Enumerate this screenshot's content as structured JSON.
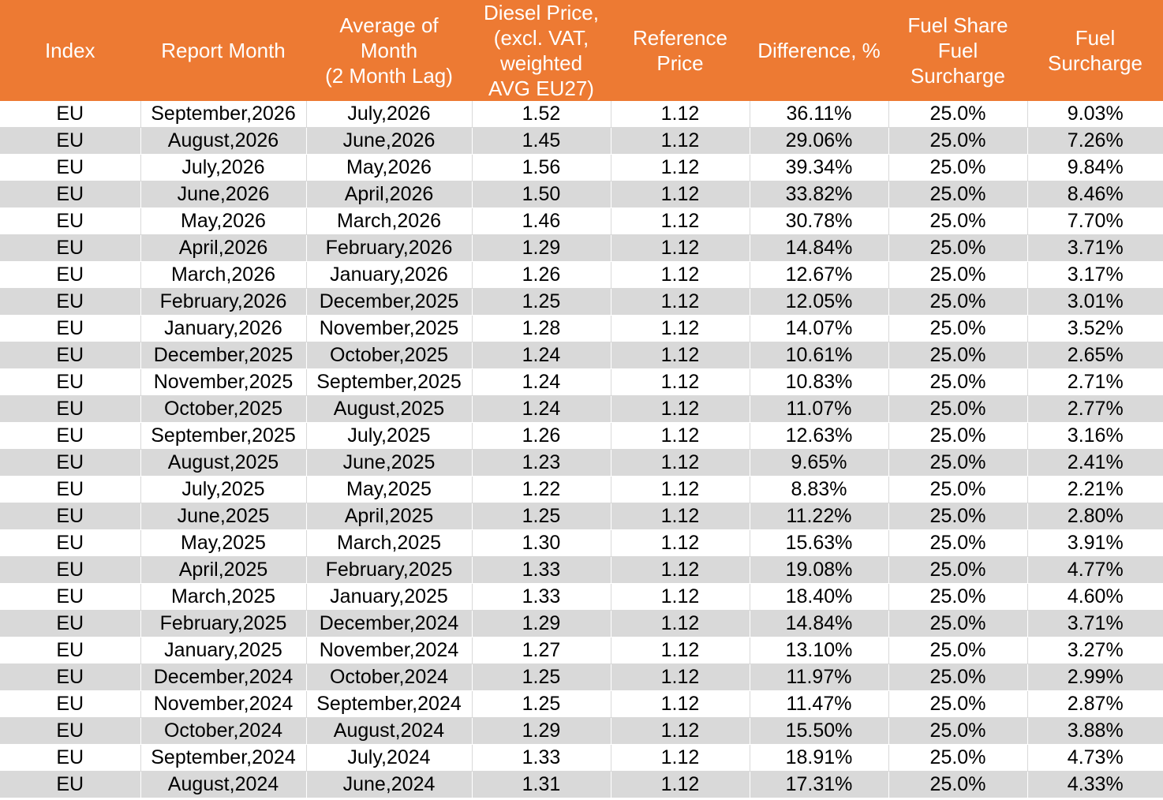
{
  "headers": [
    {
      "lines": [
        "Index"
      ]
    },
    {
      "lines": [
        "Report Month"
      ]
    },
    {
      "lines": [
        "Average of",
        "Month",
        "(2 Month Lag)"
      ]
    },
    {
      "lines": [
        "Diesel Price,",
        "(excl. VAT,",
        "weighted",
        "AVG EU27)"
      ]
    },
    {
      "lines": [
        "Reference",
        "Price"
      ]
    },
    {
      "lines": [
        "Difference, %"
      ]
    },
    {
      "lines": [
        "Fuel Share",
        "Fuel",
        "Surcharge"
      ]
    },
    {
      "lines": [
        "Fuel",
        "Surcharge"
      ]
    }
  ],
  "rows": [
    [
      "EU",
      "September,2026",
      "July,2026",
      "1.52",
      "1.12",
      "36.11%",
      "25.0%",
      "9.03%"
    ],
    [
      "EU",
      "August,2026",
      "June,2026",
      "1.45",
      "1.12",
      "29.06%",
      "25.0%",
      "7.26%"
    ],
    [
      "EU",
      "July,2026",
      "May,2026",
      "1.56",
      "1.12",
      "39.34%",
      "25.0%",
      "9.84%"
    ],
    [
      "EU",
      "June,2026",
      "April,2026",
      "1.50",
      "1.12",
      "33.82%",
      "25.0%",
      "8.46%"
    ],
    [
      "EU",
      "May,2026",
      "March,2026",
      "1.46",
      "1.12",
      "30.78%",
      "25.0%",
      "7.70%"
    ],
    [
      "EU",
      "April,2026",
      "February,2026",
      "1.29",
      "1.12",
      "14.84%",
      "25.0%",
      "3.71%"
    ],
    [
      "EU",
      "March,2026",
      "January,2026",
      "1.26",
      "1.12",
      "12.67%",
      "25.0%",
      "3.17%"
    ],
    [
      "EU",
      "February,2026",
      "December,2025",
      "1.25",
      "1.12",
      "12.05%",
      "25.0%",
      "3.01%"
    ],
    [
      "EU",
      "January,2026",
      "November,2025",
      "1.28",
      "1.12",
      "14.07%",
      "25.0%",
      "3.52%"
    ],
    [
      "EU",
      "December,2025",
      "October,2025",
      "1.24",
      "1.12",
      "10.61%",
      "25.0%",
      "2.65%"
    ],
    [
      "EU",
      "November,2025",
      "September,2025",
      "1.24",
      "1.12",
      "10.83%",
      "25.0%",
      "2.71%"
    ],
    [
      "EU",
      "October,2025",
      "August,2025",
      "1.24",
      "1.12",
      "11.07%",
      "25.0%",
      "2.77%"
    ],
    [
      "EU",
      "September,2025",
      "July,2025",
      "1.26",
      "1.12",
      "12.63%",
      "25.0%",
      "3.16%"
    ],
    [
      "EU",
      "August,2025",
      "June,2025",
      "1.23",
      "1.12",
      "9.65%",
      "25.0%",
      "2.41%"
    ],
    [
      "EU",
      "July,2025",
      "May,2025",
      "1.22",
      "1.12",
      "8.83%",
      "25.0%",
      "2.21%"
    ],
    [
      "EU",
      "June,2025",
      "April,2025",
      "1.25",
      "1.12",
      "11.22%",
      "25.0%",
      "2.80%"
    ],
    [
      "EU",
      "May,2025",
      "March,2025",
      "1.30",
      "1.12",
      "15.63%",
      "25.0%",
      "3.91%"
    ],
    [
      "EU",
      "April,2025",
      "February,2025",
      "1.33",
      "1.12",
      "19.08%",
      "25.0%",
      "4.77%"
    ],
    [
      "EU",
      "March,2025",
      "January,2025",
      "1.33",
      "1.12",
      "18.40%",
      "25.0%",
      "4.60%"
    ],
    [
      "EU",
      "February,2025",
      "December,2024",
      "1.29",
      "1.12",
      "14.84%",
      "25.0%",
      "3.71%"
    ],
    [
      "EU",
      "January,2025",
      "November,2024",
      "1.27",
      "1.12",
      "13.10%",
      "25.0%",
      "3.27%"
    ],
    [
      "EU",
      "December,2024",
      "October,2024",
      "1.25",
      "1.12",
      "11.97%",
      "25.0%",
      "2.99%"
    ],
    [
      "EU",
      "November,2024",
      "September,2024",
      "1.25",
      "1.12",
      "11.47%",
      "25.0%",
      "2.87%"
    ],
    [
      "EU",
      "October,2024",
      "August,2024",
      "1.29",
      "1.12",
      "15.50%",
      "25.0%",
      "3.88%"
    ],
    [
      "EU",
      "September,2024",
      "July,2024",
      "1.33",
      "1.12",
      "18.91%",
      "25.0%",
      "4.73%"
    ],
    [
      "EU",
      "August,2024",
      "June,2024",
      "1.31",
      "1.12",
      "17.31%",
      "25.0%",
      "4.33%"
    ]
  ],
  "colors": {
    "header_bg": "#ed7a33",
    "header_text": "#ffffff",
    "alt_row_bg": "#d9d9d9"
  }
}
